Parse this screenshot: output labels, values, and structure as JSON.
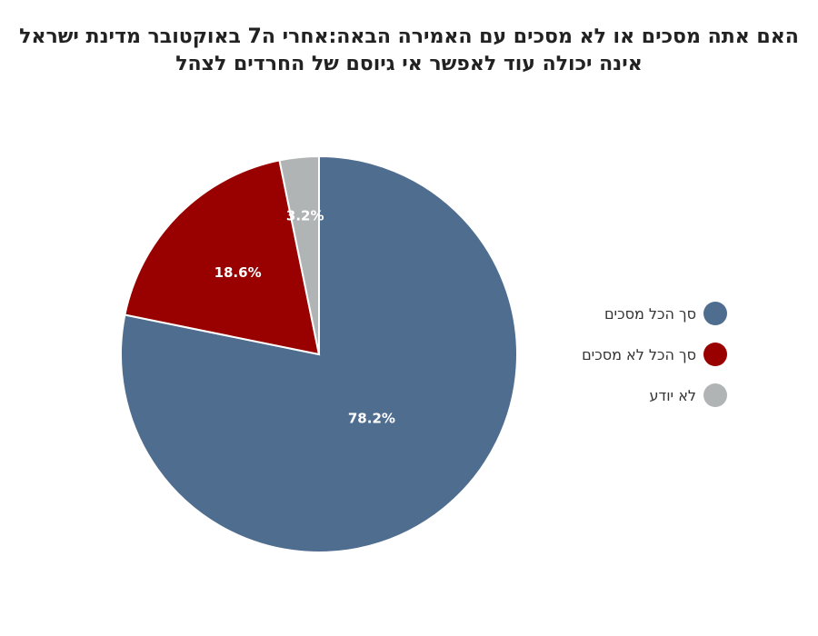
{
  "chart_data": {
    "type": "pie",
    "title_lines": [
      "האם אתה מסכים או לא מסכים עם האמירה הבאה:אחרי ה7 באוקטובר מדינת ישראל",
      "אינה יכולה עוד לאפשר אי גיוסם של החרדים לצהל"
    ],
    "slices": [
      {
        "label": "סך הכל מסכים",
        "value": 78.2,
        "display": "78.2%",
        "color": "#4f6d8f"
      },
      {
        "label": "סך הכל לא מסכים",
        "value": 18.6,
        "display": "18.6%",
        "color": "#990000"
      },
      {
        "label": "לא יודע",
        "value": 3.2,
        "display": "3.2%",
        "color": "#b0b4b5"
      }
    ],
    "legend_position": "right",
    "start_angle": "12 o'clock",
    "direction": "clockwise"
  }
}
